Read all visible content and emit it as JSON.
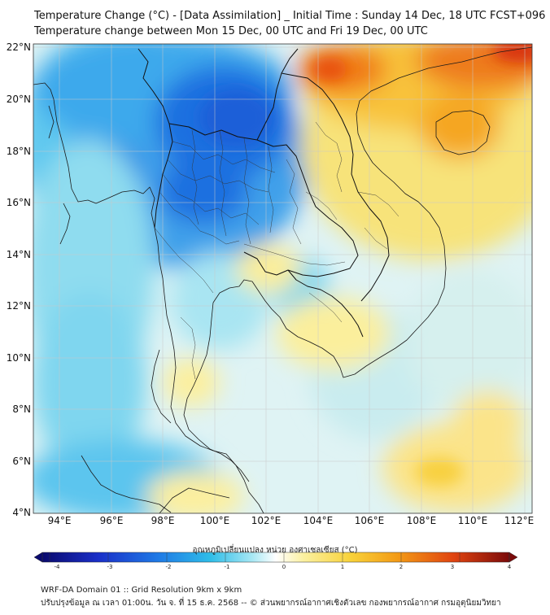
{
  "header": {
    "title_line1": "Temperature Change (°C) - [Data Assimilation] _ Initial Time : Sunday 14 Dec, 18 UTC FCST+096",
    "title_line2": "Temperature change between Mon 15 Dec, 00 UTC and Fri 19 Dec, 00 UTC"
  },
  "map": {
    "lat_labels": [
      "22°N",
      "20°N",
      "18°N",
      "16°N",
      "14°N",
      "12°N",
      "10°N",
      "8°N",
      "6°N",
      "4°N"
    ],
    "lon_labels": [
      "94°E",
      "96°E",
      "98°E",
      "100°E",
      "102°E",
      "104°E",
      "106°E",
      "108°E",
      "110°E",
      "112°E"
    ],
    "features": [
      "coastline",
      "country-borders",
      "province-borders",
      "lat-lon-grid"
    ]
  },
  "colorbar": {
    "title": "อุณหภูมิเปลี่ยนแปลง หน่วย องศาเซลเซียส (°C)",
    "tick_labels": [
      "-4",
      "-3",
      "-2",
      "-1",
      "0",
      "1",
      "2",
      "3",
      "4"
    ],
    "range": [
      -4,
      4
    ],
    "colors": [
      "#0a0a6e",
      "#1a2fc8",
      "#1f7be6",
      "#2fbde8",
      "#a8e8f4",
      "#ffffff",
      "#fbf0a0",
      "#f8d23a",
      "#f39b16",
      "#e04410",
      "#7a0a0a"
    ]
  },
  "footer": {
    "line1": "WRF-DA Domain 01 :: Grid Resolution 9km x 9km",
    "line2": "ปรับปรุงข้อมูล ณ เวลา 01:00น. วัน จ. ที่ 15 ธ.ค. 2568 -- © ส่วนพยากรณ์อากาศเชิงตัวเลข กองพยากรณ์อากาศ กรมอุตุนิยมวิทยา"
  }
}
